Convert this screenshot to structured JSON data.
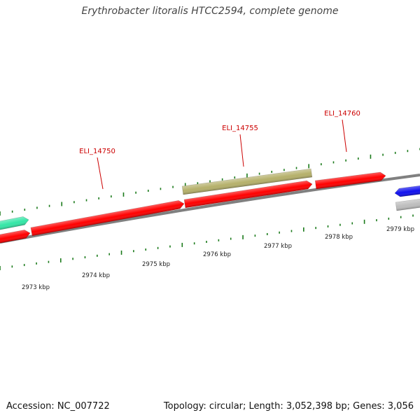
{
  "title": "Erythrobacter litoralis HTCC2594, complete genome",
  "footer": {
    "accession": "Accession: NC_007722",
    "summary": "Topology: circular; Length: 3,052,398 bp; Genes: 3,056"
  },
  "colors": {
    "background": "#ffffff",
    "backbone": "#808080",
    "tick": "#1a7a1a",
    "label": "#cc0000",
    "scale_text": "#222222",
    "gene_red": "#ff0000",
    "gene_green": "#33e6a6",
    "gene_olive": "#b5b06a",
    "gene_blue": "#1010ee",
    "gene_grey": "#bdbdbd"
  },
  "scale_labels": [
    "2973 kbp",
    "2974 kbp",
    "2975 kbp",
    "2976 kbp",
    "2977 kbp",
    "2978 kbp",
    "2979 kbp"
  ],
  "gene_labels": [
    "ELI_14750",
    "ELI_14755",
    "ELI_14760"
  ]
}
